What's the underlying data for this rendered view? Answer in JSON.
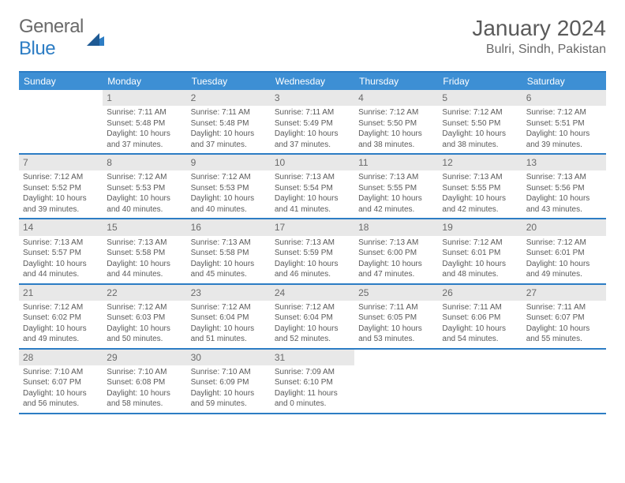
{
  "logo": {
    "word1": "General",
    "word2": "Blue"
  },
  "title": "January 2024",
  "location": "Bulri, Sindh, Pakistan",
  "colors": {
    "header_bg": "#3d8fd4",
    "border": "#2d7dc4",
    "daynum_bg": "#e8e8e8",
    "text": "#5a5a5a"
  },
  "weekdays": [
    "Sunday",
    "Monday",
    "Tuesday",
    "Wednesday",
    "Thursday",
    "Friday",
    "Saturday"
  ],
  "weeks": [
    [
      {
        "n": "",
        "sr": "",
        "ss": "",
        "dl": ""
      },
      {
        "n": "1",
        "sr": "Sunrise: 7:11 AM",
        "ss": "Sunset: 5:48 PM",
        "dl": "Daylight: 10 hours and 37 minutes."
      },
      {
        "n": "2",
        "sr": "Sunrise: 7:11 AM",
        "ss": "Sunset: 5:48 PM",
        "dl": "Daylight: 10 hours and 37 minutes."
      },
      {
        "n": "3",
        "sr": "Sunrise: 7:11 AM",
        "ss": "Sunset: 5:49 PM",
        "dl": "Daylight: 10 hours and 37 minutes."
      },
      {
        "n": "4",
        "sr": "Sunrise: 7:12 AM",
        "ss": "Sunset: 5:50 PM",
        "dl": "Daylight: 10 hours and 38 minutes."
      },
      {
        "n": "5",
        "sr": "Sunrise: 7:12 AM",
        "ss": "Sunset: 5:50 PM",
        "dl": "Daylight: 10 hours and 38 minutes."
      },
      {
        "n": "6",
        "sr": "Sunrise: 7:12 AM",
        "ss": "Sunset: 5:51 PM",
        "dl": "Daylight: 10 hours and 39 minutes."
      }
    ],
    [
      {
        "n": "7",
        "sr": "Sunrise: 7:12 AM",
        "ss": "Sunset: 5:52 PM",
        "dl": "Daylight: 10 hours and 39 minutes."
      },
      {
        "n": "8",
        "sr": "Sunrise: 7:12 AM",
        "ss": "Sunset: 5:53 PM",
        "dl": "Daylight: 10 hours and 40 minutes."
      },
      {
        "n": "9",
        "sr": "Sunrise: 7:12 AM",
        "ss": "Sunset: 5:53 PM",
        "dl": "Daylight: 10 hours and 40 minutes."
      },
      {
        "n": "10",
        "sr": "Sunrise: 7:13 AM",
        "ss": "Sunset: 5:54 PM",
        "dl": "Daylight: 10 hours and 41 minutes."
      },
      {
        "n": "11",
        "sr": "Sunrise: 7:13 AM",
        "ss": "Sunset: 5:55 PM",
        "dl": "Daylight: 10 hours and 42 minutes."
      },
      {
        "n": "12",
        "sr": "Sunrise: 7:13 AM",
        "ss": "Sunset: 5:55 PM",
        "dl": "Daylight: 10 hours and 42 minutes."
      },
      {
        "n": "13",
        "sr": "Sunrise: 7:13 AM",
        "ss": "Sunset: 5:56 PM",
        "dl": "Daylight: 10 hours and 43 minutes."
      }
    ],
    [
      {
        "n": "14",
        "sr": "Sunrise: 7:13 AM",
        "ss": "Sunset: 5:57 PM",
        "dl": "Daylight: 10 hours and 44 minutes."
      },
      {
        "n": "15",
        "sr": "Sunrise: 7:13 AM",
        "ss": "Sunset: 5:58 PM",
        "dl": "Daylight: 10 hours and 44 minutes."
      },
      {
        "n": "16",
        "sr": "Sunrise: 7:13 AM",
        "ss": "Sunset: 5:58 PM",
        "dl": "Daylight: 10 hours and 45 minutes."
      },
      {
        "n": "17",
        "sr": "Sunrise: 7:13 AM",
        "ss": "Sunset: 5:59 PM",
        "dl": "Daylight: 10 hours and 46 minutes."
      },
      {
        "n": "18",
        "sr": "Sunrise: 7:13 AM",
        "ss": "Sunset: 6:00 PM",
        "dl": "Daylight: 10 hours and 47 minutes."
      },
      {
        "n": "19",
        "sr": "Sunrise: 7:12 AM",
        "ss": "Sunset: 6:01 PM",
        "dl": "Daylight: 10 hours and 48 minutes."
      },
      {
        "n": "20",
        "sr": "Sunrise: 7:12 AM",
        "ss": "Sunset: 6:01 PM",
        "dl": "Daylight: 10 hours and 49 minutes."
      }
    ],
    [
      {
        "n": "21",
        "sr": "Sunrise: 7:12 AM",
        "ss": "Sunset: 6:02 PM",
        "dl": "Daylight: 10 hours and 49 minutes."
      },
      {
        "n": "22",
        "sr": "Sunrise: 7:12 AM",
        "ss": "Sunset: 6:03 PM",
        "dl": "Daylight: 10 hours and 50 minutes."
      },
      {
        "n": "23",
        "sr": "Sunrise: 7:12 AM",
        "ss": "Sunset: 6:04 PM",
        "dl": "Daylight: 10 hours and 51 minutes."
      },
      {
        "n": "24",
        "sr": "Sunrise: 7:12 AM",
        "ss": "Sunset: 6:04 PM",
        "dl": "Daylight: 10 hours and 52 minutes."
      },
      {
        "n": "25",
        "sr": "Sunrise: 7:11 AM",
        "ss": "Sunset: 6:05 PM",
        "dl": "Daylight: 10 hours and 53 minutes."
      },
      {
        "n": "26",
        "sr": "Sunrise: 7:11 AM",
        "ss": "Sunset: 6:06 PM",
        "dl": "Daylight: 10 hours and 54 minutes."
      },
      {
        "n": "27",
        "sr": "Sunrise: 7:11 AM",
        "ss": "Sunset: 6:07 PM",
        "dl": "Daylight: 10 hours and 55 minutes."
      }
    ],
    [
      {
        "n": "28",
        "sr": "Sunrise: 7:10 AM",
        "ss": "Sunset: 6:07 PM",
        "dl": "Daylight: 10 hours and 56 minutes."
      },
      {
        "n": "29",
        "sr": "Sunrise: 7:10 AM",
        "ss": "Sunset: 6:08 PM",
        "dl": "Daylight: 10 hours and 58 minutes."
      },
      {
        "n": "30",
        "sr": "Sunrise: 7:10 AM",
        "ss": "Sunset: 6:09 PM",
        "dl": "Daylight: 10 hours and 59 minutes."
      },
      {
        "n": "31",
        "sr": "Sunrise: 7:09 AM",
        "ss": "Sunset: 6:10 PM",
        "dl": "Daylight: 11 hours and 0 minutes."
      },
      {
        "n": "",
        "sr": "",
        "ss": "",
        "dl": ""
      },
      {
        "n": "",
        "sr": "",
        "ss": "",
        "dl": ""
      },
      {
        "n": "",
        "sr": "",
        "ss": "",
        "dl": ""
      }
    ]
  ]
}
